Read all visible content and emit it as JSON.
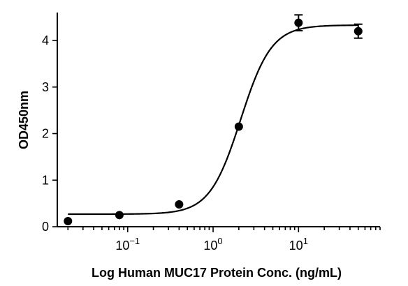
{
  "chart_data": {
    "type": "scatter",
    "xlabel": "Log Human MUC17 Protein Conc. (ng/mL)",
    "ylabel": "OD450nm",
    "xscale": "log",
    "xlim": [
      0.015,
      90
    ],
    "ylim": [
      0,
      4.6
    ],
    "yticks": [
      0,
      1,
      2,
      3,
      4
    ],
    "xticks": [
      {
        "value": 0.1,
        "base": "10",
        "exp": "−1"
      },
      {
        "value": 1,
        "base": "10",
        "exp": "0"
      },
      {
        "value": 10,
        "base": "10",
        "exp": "1"
      }
    ],
    "points": [
      {
        "x": 0.02,
        "y": 0.12
      },
      {
        "x": 0.08,
        "y": 0.25
      },
      {
        "x": 0.4,
        "y": 0.48
      },
      {
        "x": 2,
        "y": 2.15
      },
      {
        "x": 10,
        "y": 4.38,
        "err": 0.17
      },
      {
        "x": 50,
        "y": 4.2,
        "err": 0.15
      }
    ],
    "fit": {
      "model": "4PL",
      "bottom": 0.27,
      "top": 4.33,
      "ec50": 2.1,
      "hill": 2.4
    },
    "grid": false,
    "legend": "none"
  }
}
